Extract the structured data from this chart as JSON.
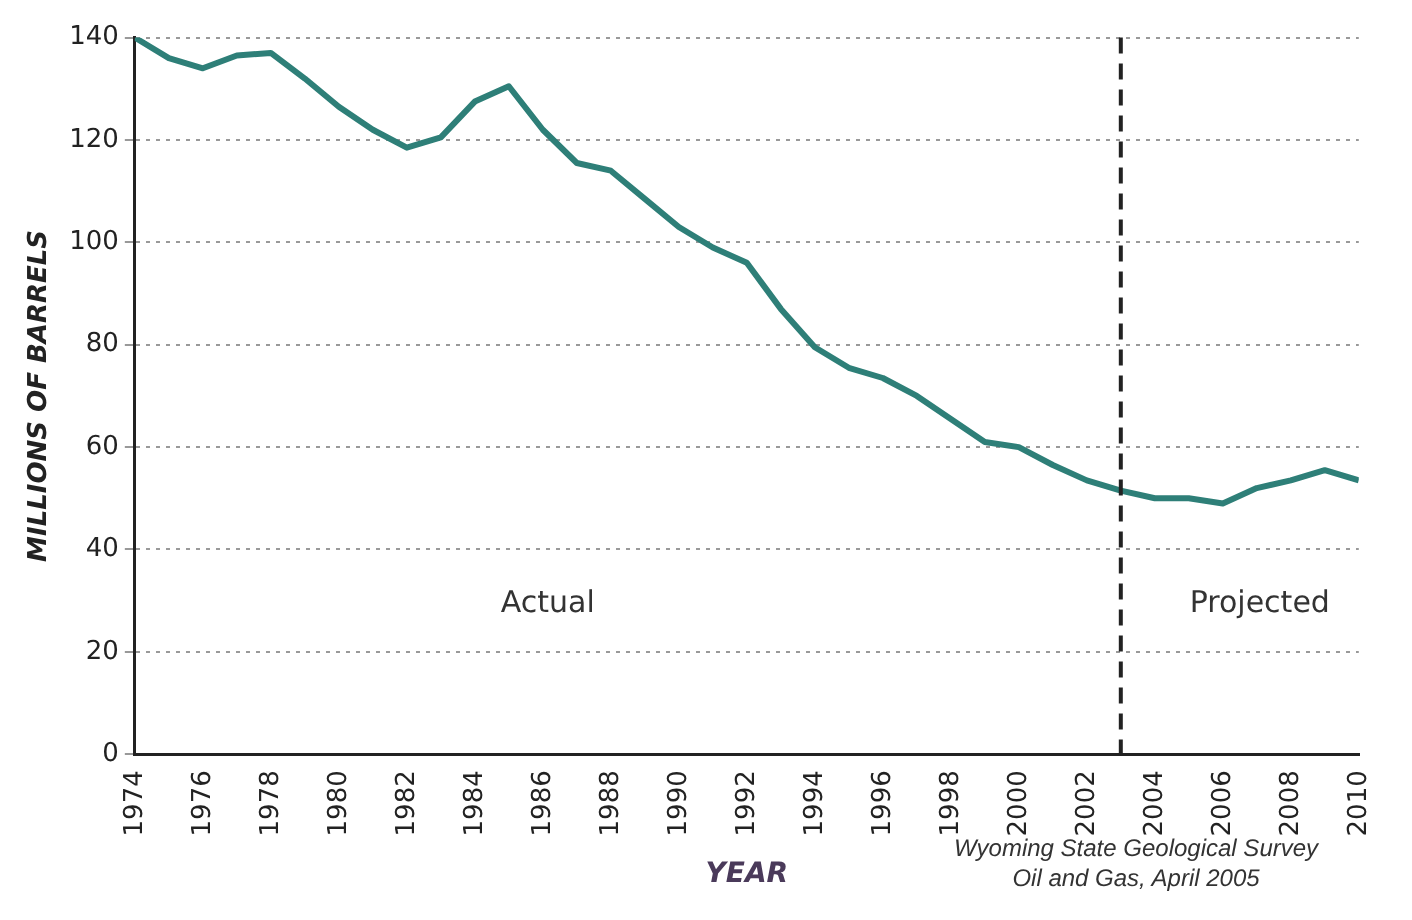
{
  "chart_data": {
    "type": "line",
    "xlabel": "YEAR",
    "ylabel": "MILLIONS OF BARRELS",
    "x": [
      1974,
      1975,
      1976,
      1977,
      1978,
      1979,
      1980,
      1981,
      1982,
      1983,
      1984,
      1985,
      1986,
      1987,
      1988,
      1989,
      1990,
      1991,
      1992,
      1993,
      1994,
      1995,
      1996,
      1997,
      1998,
      1999,
      2000,
      2001,
      2002,
      2003,
      2004,
      2005,
      2006,
      2007,
      2008,
      2009,
      2010
    ],
    "series": [
      {
        "color": "#2e7f78",
        "values": [
          140,
          136,
          134,
          136.5,
          137,
          132,
          126.5,
          122,
          118.5,
          120.5,
          127.5,
          130.5,
          122,
          115.5,
          114,
          108.5,
          103,
          99,
          96,
          87,
          79.5,
          75.5,
          73.5,
          70,
          65.5,
          61,
          60,
          56.5,
          53.5,
          51.5,
          50,
          50,
          49,
          52,
          53.5,
          55.5,
          53.5
        ]
      }
    ],
    "xlim": [
      1974,
      2010
    ],
    "xticks": [
      1974,
      1976,
      1978,
      1980,
      1982,
      1984,
      1986,
      1988,
      1990,
      1992,
      1994,
      1996,
      1998,
      2000,
      2002,
      2004,
      2006,
      2008,
      2010
    ],
    "ylim": [
      0,
      140
    ],
    "yticks": [
      0,
      20,
      40,
      60,
      80,
      100,
      120,
      140
    ],
    "grid": "y",
    "marker": "none",
    "line_style": "solid",
    "legend": false,
    "ref_lines": [
      {
        "axis": "x",
        "value": 2003,
        "color": "#222222",
        "line_style": "dashed"
      }
    ],
    "annotations": [
      "Actual",
      "Projected",
      "Wyoming State Geological Survey\nOil and Gas, April 2005"
    ]
  }
}
